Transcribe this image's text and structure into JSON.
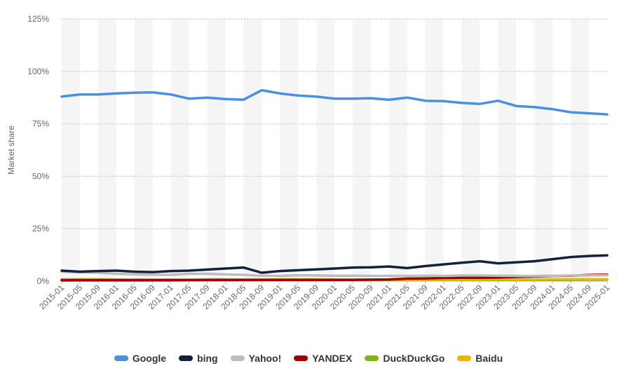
{
  "chart_data": {
    "type": "line",
    "ylabel": "Market share",
    "ylim": [
      0,
      125
    ],
    "yticks": [
      "0%",
      "25%",
      "50%",
      "75%",
      "100%",
      "125%"
    ],
    "ytick_values": [
      0,
      25,
      50,
      75,
      100,
      125
    ],
    "grid": true,
    "legend_position": "bottom",
    "x": [
      "2015-01",
      "2015-05",
      "2015-09",
      "2016-01",
      "2016-05",
      "2016-09",
      "2017-01",
      "2017-05",
      "2017-09",
      "2018-01",
      "2018-05",
      "2018-09",
      "2019-01",
      "2019-05",
      "2019-09",
      "2020-01",
      "2020-05",
      "2020-09",
      "2021-01",
      "2021-05",
      "2021-09",
      "2022-01",
      "2022-05",
      "2022-09",
      "2023-01",
      "2023-05",
      "2023-09",
      "2024-01",
      "2024-05",
      "2024-09",
      "2025-01"
    ],
    "series": [
      {
        "name": "Google",
        "color": "#4a90e2",
        "values": [
          88.0,
          89.0,
          89.0,
          89.5,
          89.8,
          90.0,
          89.0,
          87.0,
          87.5,
          86.8,
          86.5,
          91.0,
          89.5,
          88.5,
          88.0,
          87.0,
          87.0,
          87.2,
          86.5,
          87.5,
          86.0,
          85.8,
          85.0,
          84.5,
          86.0,
          83.5,
          83.0,
          82.0,
          80.5,
          80.0,
          79.5
        ]
      },
      {
        "name": "bing",
        "color": "#14213d",
        "values": [
          5.0,
          4.5,
          4.8,
          5.0,
          4.5,
          4.3,
          4.8,
          5.0,
          5.5,
          6.0,
          6.5,
          4.0,
          4.8,
          5.2,
          5.6,
          6.0,
          6.5,
          6.6,
          7.0,
          6.2,
          7.2,
          8.0,
          8.8,
          9.5,
          8.5,
          9.0,
          9.5,
          10.5,
          11.5,
          12.0,
          12.3
        ]
      },
      {
        "name": "Yahoo!",
        "color": "#bdbdbd",
        "values": [
          4.5,
          4.2,
          4.0,
          3.5,
          3.2,
          3.0,
          3.0,
          3.5,
          3.5,
          3.2,
          3.0,
          2.6,
          2.5,
          2.8,
          2.7,
          2.6,
          2.6,
          2.5,
          2.5,
          2.5,
          2.6,
          2.5,
          2.7,
          2.7,
          2.6,
          2.5,
          2.5,
          2.6,
          2.7,
          2.7,
          2.8
        ]
      },
      {
        "name": "YANDEX",
        "color": "#a00000",
        "values": [
          0.5,
          0.5,
          0.5,
          0.5,
          0.5,
          0.5,
          0.5,
          0.5,
          0.6,
          0.6,
          0.6,
          0.6,
          0.6,
          0.6,
          0.6,
          0.6,
          0.6,
          0.7,
          0.8,
          1.2,
          1.3,
          1.5,
          1.6,
          1.6,
          1.7,
          2.0,
          2.2,
          2.5,
          2.6,
          2.9,
          3.1
        ]
      },
      {
        "name": "DuckDuckGo",
        "color": "#7cb518",
        "values": [
          0.2,
          0.3,
          0.3,
          0.3,
          0.3,
          0.3,
          0.3,
          0.4,
          0.4,
          0.4,
          0.5,
          0.5,
          0.6,
          0.6,
          0.6,
          0.6,
          0.6,
          0.6,
          0.6,
          0.6,
          0.6,
          0.6,
          0.6,
          0.6,
          0.6,
          0.6,
          0.6,
          0.6,
          0.6,
          0.7,
          0.7
        ]
      },
      {
        "name": "Baidu",
        "color": "#f0b400",
        "values": [
          0.8,
          0.9,
          0.9,
          0.8,
          0.7,
          0.7,
          0.7,
          0.7,
          0.8,
          0.8,
          0.8,
          0.8,
          0.9,
          0.9,
          0.9,
          0.8,
          0.7,
          0.7,
          0.7,
          0.7,
          0.7,
          0.7,
          0.7,
          0.7,
          0.8,
          0.8,
          0.8,
          0.9,
          0.9,
          0.9,
          0.9
        ]
      }
    ]
  }
}
